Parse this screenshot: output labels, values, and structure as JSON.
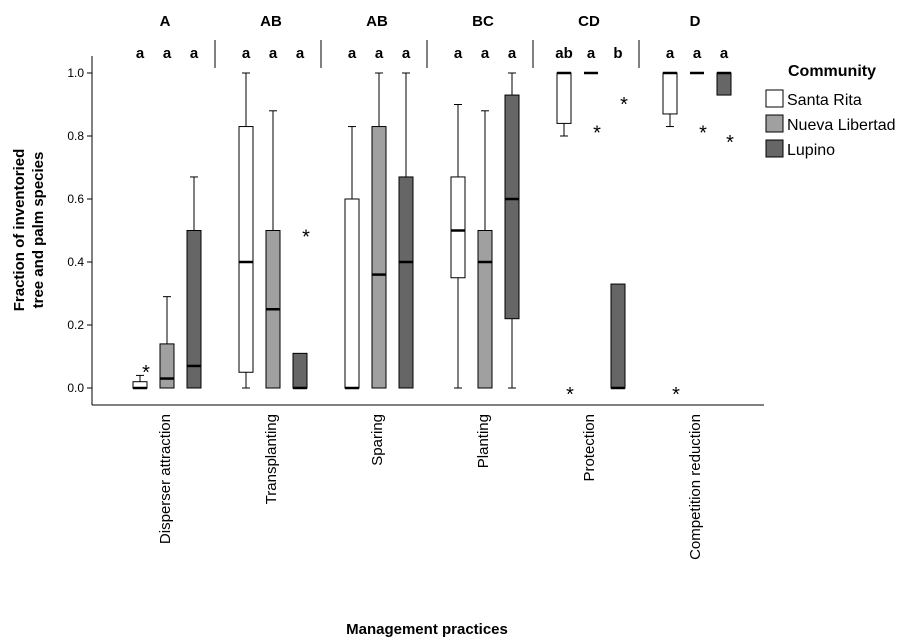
{
  "chart_data": {
    "type": "boxplot",
    "xlabel": "Management practices",
    "ylabel_line1": "Fraction of inventoried",
    "ylabel_line2": "tree and palm species",
    "ylim": [
      0,
      1.0
    ],
    "yticks": [
      "0.0",
      "0.2",
      "0.4",
      "0.6",
      "0.8",
      "1.0"
    ],
    "grid": false,
    "legend_position": "right",
    "legend": {
      "title": "Community",
      "entries": [
        {
          "name": "Santa Rita",
          "color": "#ffffff"
        },
        {
          "name": "Nueva Libertad",
          "color": "#a0a0a0"
        },
        {
          "name": "Lupino",
          "color": "#666666"
        }
      ]
    },
    "categories": [
      {
        "name": "Disperser attraction",
        "group": "A",
        "letters": [
          "a",
          "a",
          "a"
        ],
        "boxes": [
          {
            "min": 0.0,
            "q1": 0.0,
            "median": 0.0,
            "q3": 0.02,
            "max": 0.04,
            "outliers": [
              0.07
            ]
          },
          {
            "min": 0.0,
            "q1": 0.0,
            "median": 0.03,
            "q3": 0.14,
            "max": 0.29,
            "outliers": []
          },
          {
            "min": 0.0,
            "q1": 0.0,
            "median": 0.07,
            "q3": 0.5,
            "max": 0.67,
            "outliers": []
          }
        ]
      },
      {
        "name": "Transplanting",
        "group": "AB",
        "letters": [
          "a",
          "a",
          "a"
        ],
        "boxes": [
          {
            "min": 0.0,
            "q1": 0.05,
            "median": 0.4,
            "q3": 0.83,
            "max": 1.0,
            "outliers": []
          },
          {
            "min": 0.0,
            "q1": 0.0,
            "median": 0.25,
            "q3": 0.5,
            "max": 0.88,
            "outliers": []
          },
          {
            "min": 0.0,
            "q1": 0.0,
            "median": 0.0,
            "q3": 0.11,
            "max": 0.11,
            "outliers": [
              0.5
            ]
          }
        ]
      },
      {
        "name": "Sparing",
        "group": "AB",
        "letters": [
          "a",
          "a",
          "a"
        ],
        "boxes": [
          {
            "min": 0.0,
            "q1": 0.0,
            "median": 0.0,
            "q3": 0.6,
            "max": 0.83,
            "outliers": []
          },
          {
            "min": 0.0,
            "q1": 0.0,
            "median": 0.36,
            "q3": 0.83,
            "max": 1.0,
            "outliers": []
          },
          {
            "min": 0.0,
            "q1": 0.0,
            "median": 0.4,
            "q3": 0.67,
            "max": 1.0,
            "outliers": []
          }
        ]
      },
      {
        "name": "Planting",
        "group": "BC",
        "letters": [
          "a",
          "a",
          "a"
        ],
        "boxes": [
          {
            "min": 0.0,
            "q1": 0.35,
            "median": 0.5,
            "q3": 0.67,
            "max": 0.9,
            "outliers": []
          },
          {
            "min": 0.0,
            "q1": 0.0,
            "median": 0.4,
            "q3": 0.5,
            "max": 0.88,
            "outliers": []
          },
          {
            "min": 0.0,
            "q1": 0.22,
            "median": 0.6,
            "q3": 0.93,
            "max": 1.0,
            "outliers": []
          }
        ]
      },
      {
        "name": "Protection",
        "group": "CD",
        "letters": [
          "ab",
          "a",
          "b"
        ],
        "boxes": [
          {
            "min": 0.8,
            "q1": 0.84,
            "median": 1.0,
            "q3": 1.0,
            "max": 1.0,
            "outliers": [
              0.0
            ]
          },
          {
            "min": 1.0,
            "q1": 1.0,
            "median": 1.0,
            "q3": 1.0,
            "max": 1.0,
            "outliers": [
              0.83
            ]
          },
          {
            "min": 0.0,
            "q1": 0.0,
            "median": 0.0,
            "q3": 0.33,
            "max": 0.33,
            "outliers": [
              0.92
            ]
          }
        ]
      },
      {
        "name": "Competition reduction",
        "group": "D",
        "letters": [
          "a",
          "a",
          "a"
        ],
        "boxes": [
          {
            "min": 0.83,
            "q1": 0.87,
            "median": 1.0,
            "q3": 1.0,
            "max": 1.0,
            "outliers": [
              0.0
            ]
          },
          {
            "min": 1.0,
            "q1": 1.0,
            "median": 1.0,
            "q3": 1.0,
            "max": 1.0,
            "outliers": [
              0.83
            ]
          },
          {
            "min": 0.93,
            "q1": 0.93,
            "median": 1.0,
            "q3": 1.0,
            "max": 1.0,
            "outliers": [
              0.8
            ]
          }
        ]
      }
    ]
  }
}
